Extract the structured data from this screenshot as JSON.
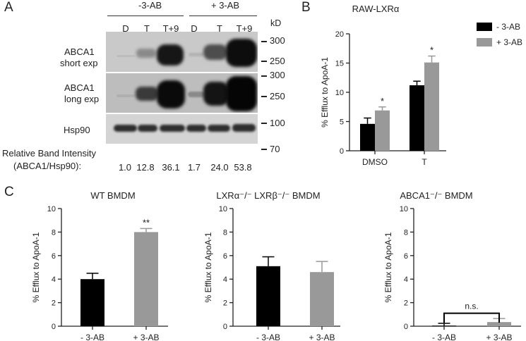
{
  "panel_a": {
    "label": "A",
    "group_left": "-3-AB",
    "group_right": "+ 3-AB",
    "lanes": [
      "D",
      "T",
      "T+9",
      "D",
      "T",
      "T+9"
    ],
    "kd_label": "kD",
    "markers_top": [
      "300",
      "250"
    ],
    "markers_mid": [
      "300",
      "250"
    ],
    "markers_bottom": [
      "100",
      "70"
    ],
    "row_short_line1": "ABCA1",
    "row_short_line2": "short exp",
    "row_long_line1": "ABCA1",
    "row_long_line2": "long exp",
    "row_hsp": "Hsp90",
    "intensity_line1": "Relative Band Intensity",
    "intensity_line2": "(ABCA1/Hsp90):",
    "intensity_values": [
      "1.0",
      "12.8",
      "36.1",
      "1.7",
      "24.0",
      "53.8"
    ]
  },
  "panel_labels": {
    "b": "B",
    "c": "C"
  },
  "colors": {
    "black_bar": "#000000",
    "gray_bar": "#999999",
    "axis": "#222222"
  },
  "chart_data": [
    {
      "id": "B",
      "type": "bar",
      "title": "RAW-LXRα",
      "ylabel": "% Efflux to ApoA-1",
      "ylim": [
        0,
        20
      ],
      "yticks": [
        "0",
        "5",
        "10",
        "15",
        "20"
      ],
      "categories": [
        "DMSO",
        "T"
      ],
      "series": [
        {
          "name": "- 3-AB",
          "values": [
            4.6,
            11.2
          ],
          "errors": [
            1.0,
            0.7
          ],
          "color": "#000000"
        },
        {
          "name": "+ 3-AB",
          "values": [
            6.9,
            15.1
          ],
          "errors": [
            0.6,
            1.1
          ],
          "color": "#999999"
        }
      ],
      "annotations": [
        "",
        "*",
        "",
        "*"
      ],
      "legend": "top-right"
    },
    {
      "id": "C1",
      "type": "bar",
      "title": "WT BMDM",
      "ylabel": "% Efflux to ApoA-1",
      "ylim": [
        0,
        10
      ],
      "yticks": [
        "0",
        "2",
        "4",
        "6",
        "8",
        "10"
      ],
      "categories": [
        "- 3-AB",
        "+ 3-AB"
      ],
      "values": [
        4.0,
        8.0
      ],
      "errors": [
        0.5,
        0.3
      ],
      "colors": [
        "#000000",
        "#999999"
      ],
      "annotations": [
        "",
        "**"
      ]
    },
    {
      "id": "C2",
      "type": "bar",
      "title": "LXRα⁻/⁻ LXRβ⁻/⁻ BMDM",
      "ylabel": "% Efflux to ApoA-1",
      "ylim": [
        0,
        10
      ],
      "yticks": [
        "0",
        "2",
        "4",
        "6",
        "8",
        "10"
      ],
      "categories": [
        "- 3-AB",
        "+ 3-AB"
      ],
      "values": [
        5.1,
        4.6
      ],
      "errors": [
        0.8,
        0.9
      ],
      "colors": [
        "#000000",
        "#999999"
      ],
      "annotations": [
        "",
        ""
      ]
    },
    {
      "id": "C3",
      "type": "bar",
      "title": "ABCA1⁻/⁻ BMDM",
      "ylabel": "% Efflux to ApoA-1",
      "ylim": [
        0,
        10
      ],
      "yticks": [
        "0",
        "2",
        "4",
        "6",
        "8",
        "10"
      ],
      "categories": [
        "- 3-AB",
        "+ 3-AB"
      ],
      "values": [
        0.05,
        0.35
      ],
      "errors": [
        0.2,
        0.3
      ],
      "colors": [
        "#000000",
        "#999999"
      ],
      "annotations": [
        "",
        ""
      ],
      "bracket_label": "n.s."
    }
  ]
}
